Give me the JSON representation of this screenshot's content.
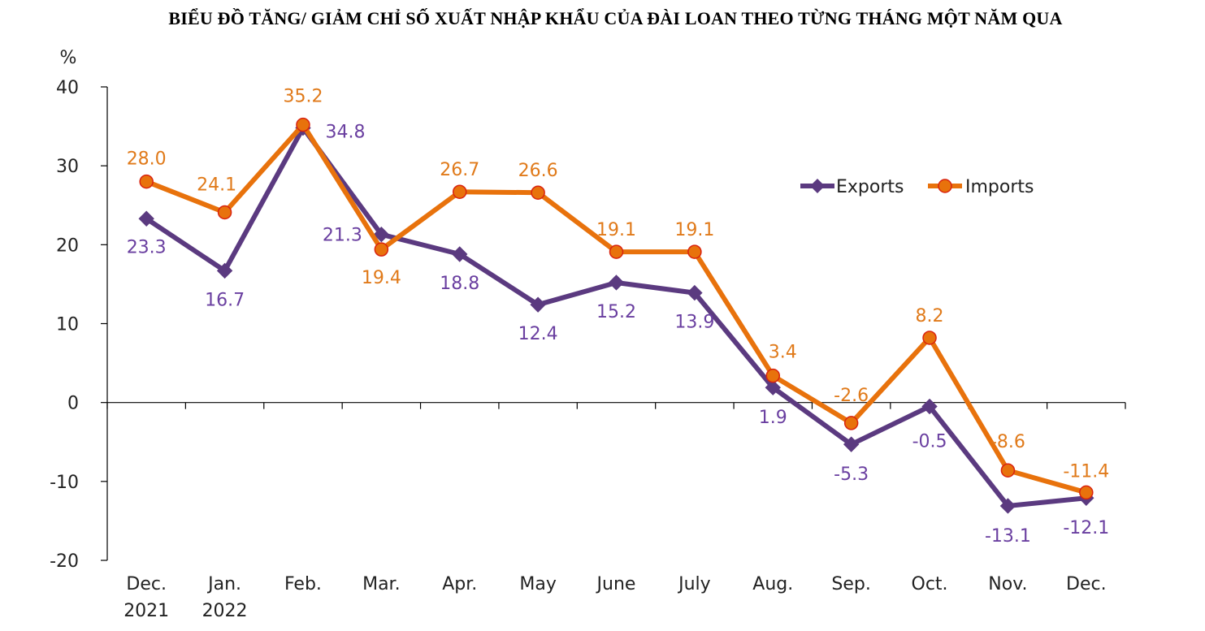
{
  "chart_data": {
    "type": "line",
    "title": "BIỂU ĐỒ TĂNG/ GIẢM CHỈ SỐ XUẤT NHẬP KHẨU CỦA ĐÀI LOAN THEO TỪNG THÁNG MỘT NĂM QUA",
    "ylabel": "%",
    "xlabel": "",
    "ylim": [
      -20,
      40
    ],
    "yticks": [
      40,
      30,
      20,
      10,
      0,
      -10,
      -20
    ],
    "categories": [
      [
        "Dec.",
        "2021"
      ],
      [
        "Jan.",
        "2022"
      ],
      [
        "Feb."
      ],
      [
        "Mar."
      ],
      [
        "Apr."
      ],
      [
        "May"
      ],
      [
        "June"
      ],
      [
        "July"
      ],
      [
        "Aug."
      ],
      [
        "Sep."
      ],
      [
        "Oct."
      ],
      [
        "Nov."
      ],
      [
        "Dec."
      ]
    ],
    "series": [
      {
        "name": "Exports",
        "color": "#5b3a80",
        "label_color": "#6a3fa0",
        "marker": "diamond",
        "values": [
          23.3,
          16.7,
          34.8,
          21.3,
          18.8,
          12.4,
          15.2,
          13.9,
          1.9,
          -5.3,
          -0.5,
          -13.1,
          -12.1
        ],
        "labels": [
          "23.3",
          "16.7",
          "34.8",
          "21.3",
          "18.8",
          "12.4",
          "15.2",
          "13.9",
          "1.9",
          "-5.3",
          "-0.5",
          "-13.1",
          "-12.1"
        ]
      },
      {
        "name": "Imports",
        "color": "#e8720c",
        "label_color": "#e07a1a",
        "marker": "circle",
        "values": [
          28.0,
          24.1,
          35.2,
          19.4,
          26.7,
          26.6,
          19.1,
          19.1,
          3.4,
          -2.6,
          8.2,
          -8.6,
          -11.4
        ],
        "labels": [
          "28.0",
          "24.1",
          "35.2",
          "19.4",
          "26.7",
          "26.6",
          "19.1",
          "19.1",
          "3.4",
          "-2.6",
          "8.2",
          "-8.6",
          "-11.4"
        ]
      }
    ],
    "grid": false,
    "legend_position": "top-right"
  }
}
